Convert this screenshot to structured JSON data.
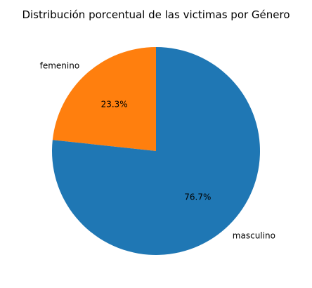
{
  "chart_data": {
    "type": "pie",
    "title": "Distribución porcentual de las victimas por Género",
    "categories": [
      "femenino",
      "masculino"
    ],
    "values": [
      23.3,
      76.7
    ],
    "percent_labels": [
      "23.3%",
      "76.7%"
    ],
    "colors": [
      "#ff7f0e",
      "#1f77b4"
    ],
    "start_angle_deg": 90,
    "direction": "counterclockwise",
    "legend": "none"
  }
}
